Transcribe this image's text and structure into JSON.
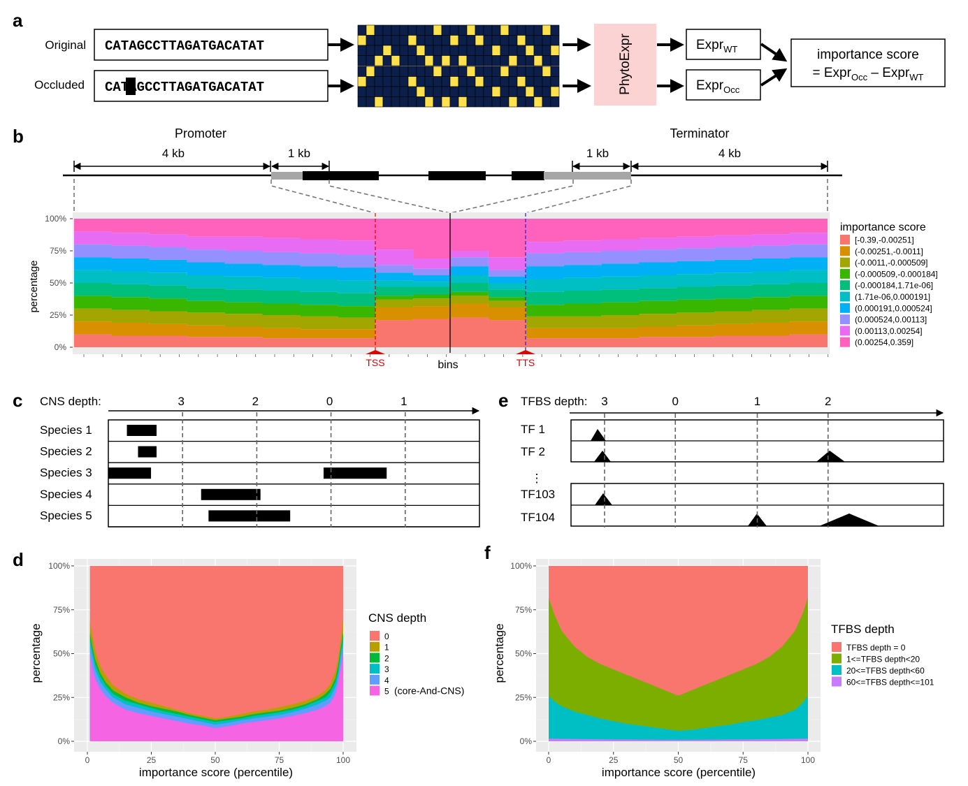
{
  "panel_letters": {
    "a": "a",
    "b": "b",
    "c": "c",
    "d": "d",
    "e": "e",
    "f": "f"
  },
  "panel_a": {
    "row_labels": [
      "Original",
      "Occluded"
    ],
    "sequences": [
      "CATAGCCTTAGATGACATAT",
      "CATAGCCTTAGATGACATAT"
    ],
    "model": "PhytoExpr",
    "expr_wt": {
      "base": "Expr",
      "sub": "WT"
    },
    "expr_occ": {
      "base": "Expr",
      "sub": "Occ"
    },
    "score_line1": "importance score",
    "score_line2": {
      "prefix": "= Expr",
      "sub1": "Occ",
      "mid": " – Expr",
      "sub2": "WT"
    },
    "onehot_colors": {
      "bg": "#0b1f4a",
      "on": "#ffe14d"
    },
    "onehot_orig": [
      [
        0,
        1,
        0,
        0,
        0,
        0,
        0,
        0,
        0,
        1,
        0,
        0,
        0,
        1,
        0,
        0,
        0,
        1,
        0,
        0,
        0,
        0,
        1,
        0
      ],
      [
        1,
        0,
        0,
        0,
        0,
        0,
        1,
        0,
        0,
        0,
        0,
        1,
        0,
        0,
        1,
        0,
        0,
        0,
        0,
        1,
        0,
        0,
        0,
        0
      ],
      [
        0,
        0,
        0,
        1,
        0,
        0,
        0,
        1,
        0,
        0,
        0,
        0,
        0,
        0,
        0,
        0,
        1,
        0,
        0,
        0,
        1,
        0,
        0,
        1
      ],
      [
        0,
        0,
        1,
        0,
        1,
        0,
        0,
        0,
        1,
        0,
        1,
        0,
        1,
        0,
        0,
        0,
        0,
        0,
        1,
        0,
        0,
        1,
        0,
        0
      ]
    ],
    "onehot_occ": [
      [
        0,
        1,
        0,
        0,
        0,
        0,
        0,
        0,
        0,
        1,
        0,
        0,
        0,
        1,
        0,
        0,
        0,
        1,
        0,
        0,
        0,
        0,
        1,
        0
      ],
      [
        1,
        0,
        0,
        0,
        0,
        0,
        1,
        0,
        0,
        0,
        0,
        1,
        0,
        0,
        1,
        0,
        0,
        0,
        0,
        1,
        0,
        0,
        0,
        0
      ],
      [
        0,
        0,
        0,
        0,
        0,
        0,
        0,
        1,
        0,
        0,
        0,
        0,
        0,
        0,
        0,
        0,
        1,
        0,
        0,
        0,
        1,
        0,
        0,
        1
      ],
      [
        0,
        0,
        1,
        0,
        0,
        0,
        0,
        0,
        1,
        0,
        1,
        0,
        1,
        0,
        0,
        0,
        0,
        0,
        1,
        0,
        0,
        1,
        0,
        0
      ]
    ]
  },
  "panel_b": {
    "promoter": "Promoter",
    "terminator": "Terminator",
    "kb4_left": "4 kb",
    "kb1_left": "1 kb",
    "kb1_right": "1 kb",
    "kb4_right": "4 kb",
    "tss": "TSS",
    "tts": "TTS",
    "xlabel": "bins",
    "ylabel": "percentage",
    "yticks": [
      "0%",
      "25%",
      "50%",
      "75%",
      "100%"
    ],
    "legend_title": "importance score",
    "legend_labels": [
      "[-0.39,-0.00251]",
      "(-0.00251,-0.0011]",
      "(-0.0011,-0.000509]",
      "(-0.000509,-0.000184]",
      "(-0.000184,1.71e-06]",
      "(1.71e-06,0.000191]",
      "(0.000191,0.000524]",
      "(0.000524,0.00113]",
      "(0.00113,0.00254]",
      "(0.00254,0.359]"
    ],
    "colors": [
      "#F8766D",
      "#D89000",
      "#A3A500",
      "#39B600",
      "#00BF7D",
      "#00BFC4",
      "#00B0F6",
      "#9590FF",
      "#E76BF3",
      "#FF62BC"
    ]
  },
  "panel_c": {
    "header": "CNS depth:",
    "depth_labels": [
      {
        "text": "3",
        "x": 20
      },
      {
        "text": "2",
        "x": 40
      },
      {
        "text": "0",
        "x": 60
      },
      {
        "text": "1",
        "x": 80
      }
    ],
    "species": [
      "Species 1",
      "Species 2",
      "Species 3",
      "Species 4",
      "Species 5"
    ],
    "bars": [
      [
        [
          5,
          13
        ]
      ],
      [
        [
          8,
          13
        ]
      ],
      [
        [
          0,
          11.5
        ],
        [
          58,
          75
        ]
      ],
      [
        [
          25,
          41
        ]
      ],
      [
        [
          27,
          49
        ]
      ]
    ]
  },
  "panel_e": {
    "header": "TFBS depth:",
    "depth_labels": [
      {
        "text": "3",
        "x": 9
      },
      {
        "text": "0",
        "x": 28
      },
      {
        "text": "1",
        "x": 50
      },
      {
        "text": "2",
        "x": 69
      }
    ],
    "tfs": [
      "TF 1",
      "TF 2",
      "TF103",
      "TF104"
    ],
    "ellipsis": "⋮"
  },
  "chart_data": [
    {
      "type": "area",
      "panel": "b",
      "xlabel": "bins",
      "ylabel": "percentage",
      "ylim": [
        0,
        100
      ],
      "legend_title": "importance score",
      "categories": [
        "[-0.39,-0.00251]",
        "(-0.00251,-0.0011]",
        "(-0.0011,-0.000509]",
        "(-0.000509,-0.000184]",
        "(-0.000184,1.71e-06]",
        "(1.71e-06,0.000191]",
        "(0.000191,0.000524]",
        "(0.000524,0.00113]",
        "(0.00113,0.00254]",
        "(0.00254,0.359]"
      ],
      "bins": 20,
      "cumulative_top": [
        [
          10,
          20,
          30,
          40,
          50,
          60,
          70,
          80,
          90,
          100
        ],
        [
          9,
          19,
          29,
          39,
          49,
          59,
          69,
          79,
          89,
          100
        ],
        [
          9,
          18,
          28,
          38,
          48,
          58,
          68,
          78,
          88,
          100
        ],
        [
          8,
          17,
          27,
          36,
          46,
          56,
          66,
          76,
          86,
          100
        ],
        [
          8,
          16,
          26,
          35,
          45,
          55,
          65,
          75,
          86,
          100
        ],
        [
          7,
          15,
          25,
          34,
          44,
          54,
          64,
          74,
          85,
          100
        ],
        [
          7,
          14,
          24,
          33,
          43,
          53,
          63,
          73,
          84,
          100
        ],
        [
          7,
          14,
          23,
          32,
          42,
          52,
          62,
          72,
          83,
          100
        ],
        [
          21,
          31,
          37,
          40,
          47,
          52,
          58,
          64,
          76,
          100
        ],
        [
          22,
          32,
          38,
          41,
          47,
          51,
          56,
          61,
          69,
          100
        ],
        [
          23,
          34,
          40,
          43,
          50,
          56,
          63,
          70,
          75,
          100
        ],
        [
          21,
          31,
          36,
          39,
          45,
          50,
          55,
          60,
          70,
          100
        ],
        [
          7,
          15,
          24,
          33,
          43,
          53,
          63,
          73,
          82,
          100
        ],
        [
          7,
          15,
          24,
          34,
          44,
          54,
          64,
          74,
          83,
          100
        ],
        [
          7,
          15,
          25,
          35,
          45,
          55,
          65,
          75,
          84,
          100
        ],
        [
          8,
          16,
          26,
          36,
          46,
          56,
          66,
          76,
          85,
          100
        ],
        [
          8,
          17,
          27,
          37,
          47,
          57,
          67,
          77,
          86,
          100
        ],
        [
          9,
          18,
          28,
          38,
          48,
          58,
          68,
          78,
          87,
          100
        ],
        [
          9,
          19,
          29,
          39,
          49,
          59,
          69,
          79,
          88,
          100
        ],
        [
          10,
          20,
          30,
          40,
          50,
          60,
          70,
          80,
          89,
          100
        ]
      ]
    },
    {
      "type": "area",
      "panel": "d",
      "xlabel": "importance score (percentile)",
      "ylabel": "percentage",
      "xlim": [
        0,
        100
      ],
      "ylim": [
        0,
        100
      ],
      "xticks": [
        "0",
        "25",
        "50",
        "75",
        "100"
      ],
      "yticks": [
        "0%",
        "25%",
        "50%",
        "75%",
        "100%"
      ],
      "legend_title": "CNS depth",
      "legend_labels": [
        "0",
        "1",
        "2",
        "3",
        "4",
        "5"
      ],
      "legend_note": "(core-And-CNS)",
      "colors": [
        "#F8766D",
        "#B79F00",
        "#00BA38",
        "#00BFC4",
        "#619CFF",
        "#F564E3"
      ],
      "x": [
        1,
        2,
        3,
        5,
        7,
        10,
        15,
        20,
        25,
        30,
        35,
        40,
        45,
        50,
        55,
        60,
        65,
        70,
        75,
        80,
        85,
        90,
        93,
        95,
        97,
        98,
        99,
        100
      ],
      "series": [
        {
          "name": "5",
          "values": [
            50,
            42,
            36,
            30,
            26,
            22,
            18,
            16,
            14.5,
            13,
            11.5,
            10,
            9,
            7.5,
            8.5,
            10,
            11,
            12,
            13,
            14.5,
            16,
            18,
            20,
            22,
            27,
            33,
            42,
            50
          ]
        },
        {
          "name": "4",
          "values": [
            56,
            48,
            41,
            34,
            30,
            25,
            21,
            19,
            17,
            15.5,
            14,
            12.5,
            11,
            9.5,
            10.5,
            12,
            13,
            14,
            15,
            16.5,
            18.5,
            21,
            23,
            25,
            31,
            37,
            47,
            56
          ]
        },
        {
          "name": "3",
          "values": [
            59,
            51,
            44,
            37,
            32,
            27,
            23,
            21,
            19,
            17,
            15.5,
            14,
            12.5,
            11,
            12,
            13,
            14.5,
            15.5,
            16.5,
            18,
            20,
            23,
            25,
            28,
            34,
            40,
            50,
            59
          ]
        },
        {
          "name": "2",
          "values": [
            62,
            54,
            47,
            39,
            34,
            29,
            25,
            22,
            20,
            18.5,
            17,
            15,
            13.5,
            12,
            13,
            14,
            15.5,
            16.5,
            17.5,
            19,
            21,
            24,
            27,
            30,
            36,
            43,
            53,
            62
          ]
        },
        {
          "name": "1",
          "values": [
            69,
            60,
            52,
            43,
            38,
            32,
            27,
            24,
            22,
            20,
            18,
            16,
            14.5,
            13,
            14,
            15.5,
            17,
            18,
            19.5,
            21,
            23,
            26,
            29,
            33,
            40,
            47,
            58,
            69
          ]
        },
        {
          "name": "0",
          "values": [
            100,
            100,
            100,
            100,
            100,
            100,
            100,
            100,
            100,
            100,
            100,
            100,
            100,
            100,
            100,
            100,
            100,
            100,
            100,
            100,
            100,
            100,
            100,
            100,
            100,
            100,
            100,
            100
          ]
        }
      ]
    },
    {
      "type": "area",
      "panel": "f",
      "xlabel": "importance score (percentile)",
      "ylabel": "percentage",
      "xlim": [
        0,
        100
      ],
      "ylim": [
        0,
        100
      ],
      "xticks": [
        "0",
        "25",
        "50",
        "75",
        "100"
      ],
      "yticks": [
        "0%",
        "25%",
        "50%",
        "75%",
        "100%"
      ],
      "legend_title": "TFBS depth",
      "legend_labels": [
        "TFBS depth = 0",
        "1<=TFBS depth<20",
        "20<=TFBS depth<60",
        "60<=TFBS depth<=101"
      ],
      "colors": [
        "#F8766D",
        "#7CAE00",
        "#00BFC4",
        "#C77CFF"
      ],
      "x": [
        0,
        2,
        5,
        10,
        15,
        20,
        25,
        30,
        35,
        40,
        45,
        50,
        55,
        60,
        65,
        70,
        75,
        80,
        85,
        90,
        95,
        98,
        100
      ],
      "series": [
        {
          "name": "60<=TFBS depth<=101",
          "values": [
            1.5,
            1.5,
            1.4,
            1.3,
            1.2,
            1.1,
            1,
            1,
            0.9,
            0.9,
            0.8,
            0.8,
            0.8,
            0.9,
            0.9,
            1,
            1,
            1.1,
            1.2,
            1.3,
            1.4,
            1.5,
            1.5
          ]
        },
        {
          "name": "20<=TFBS depth<60",
          "values": [
            26,
            23,
            20,
            17,
            15,
            13,
            11.5,
            10,
            9,
            8,
            7,
            6,
            6.5,
            7.5,
            8.5,
            9.5,
            11,
            12,
            13.5,
            15,
            18,
            22,
            26
          ]
        },
        {
          "name": "1<=TFBS depth<20",
          "values": [
            82,
            73,
            63,
            54,
            48,
            44,
            41,
            38,
            35,
            32,
            29,
            26,
            29,
            32,
            35,
            38,
            41,
            44,
            48,
            54,
            63,
            73,
            82
          ]
        },
        {
          "name": "TFBS depth = 0",
          "values": [
            100,
            100,
            100,
            100,
            100,
            100,
            100,
            100,
            100,
            100,
            100,
            100,
            100,
            100,
            100,
            100,
            100,
            100,
            100,
            100,
            100,
            100,
            100
          ]
        }
      ]
    }
  ]
}
